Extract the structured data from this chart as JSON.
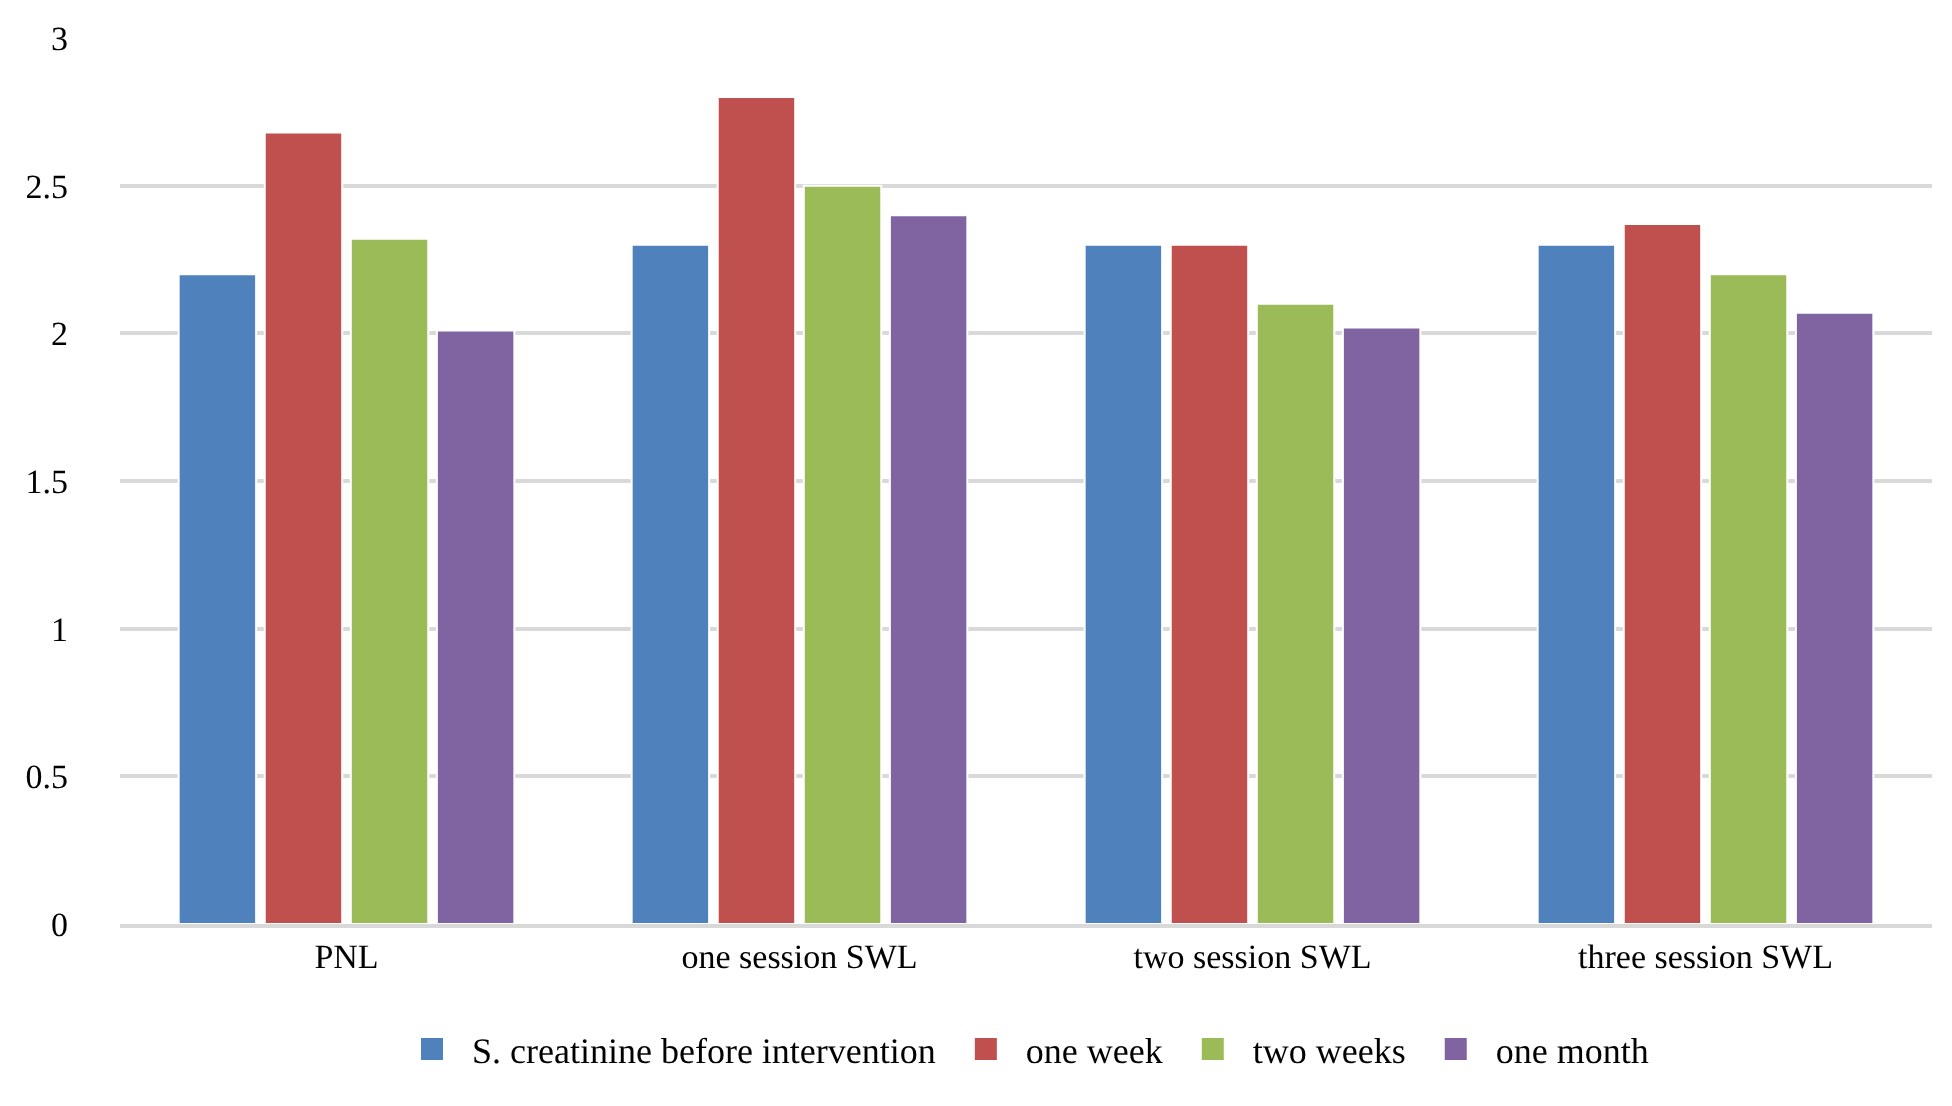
{
  "chart_data": {
    "type": "bar",
    "categories": [
      "PNL",
      "one session SWL",
      "two session SWL",
      "three session SWL"
    ],
    "series": [
      {
        "name": "S. creatinine before intervention",
        "color": "#4f81bd",
        "values": [
          2.2,
          2.3,
          2.3,
          2.3
        ]
      },
      {
        "name": "one week",
        "color": "#c0504d",
        "values": [
          2.68,
          2.8,
          2.3,
          2.37
        ]
      },
      {
        "name": "two weeks",
        "color": "#9bbb59",
        "values": [
          2.32,
          2.5,
          2.1,
          2.2
        ]
      },
      {
        "name": "one month",
        "color": "#8064a2",
        "values": [
          2.01,
          2.4,
          2.02,
          2.07
        ]
      }
    ],
    "ylim": [
      0,
      3
    ],
    "yticks": [
      0,
      0.5,
      1,
      1.5,
      2,
      2.5,
      3
    ],
    "grid": "y",
    "legend": "bottom"
  }
}
